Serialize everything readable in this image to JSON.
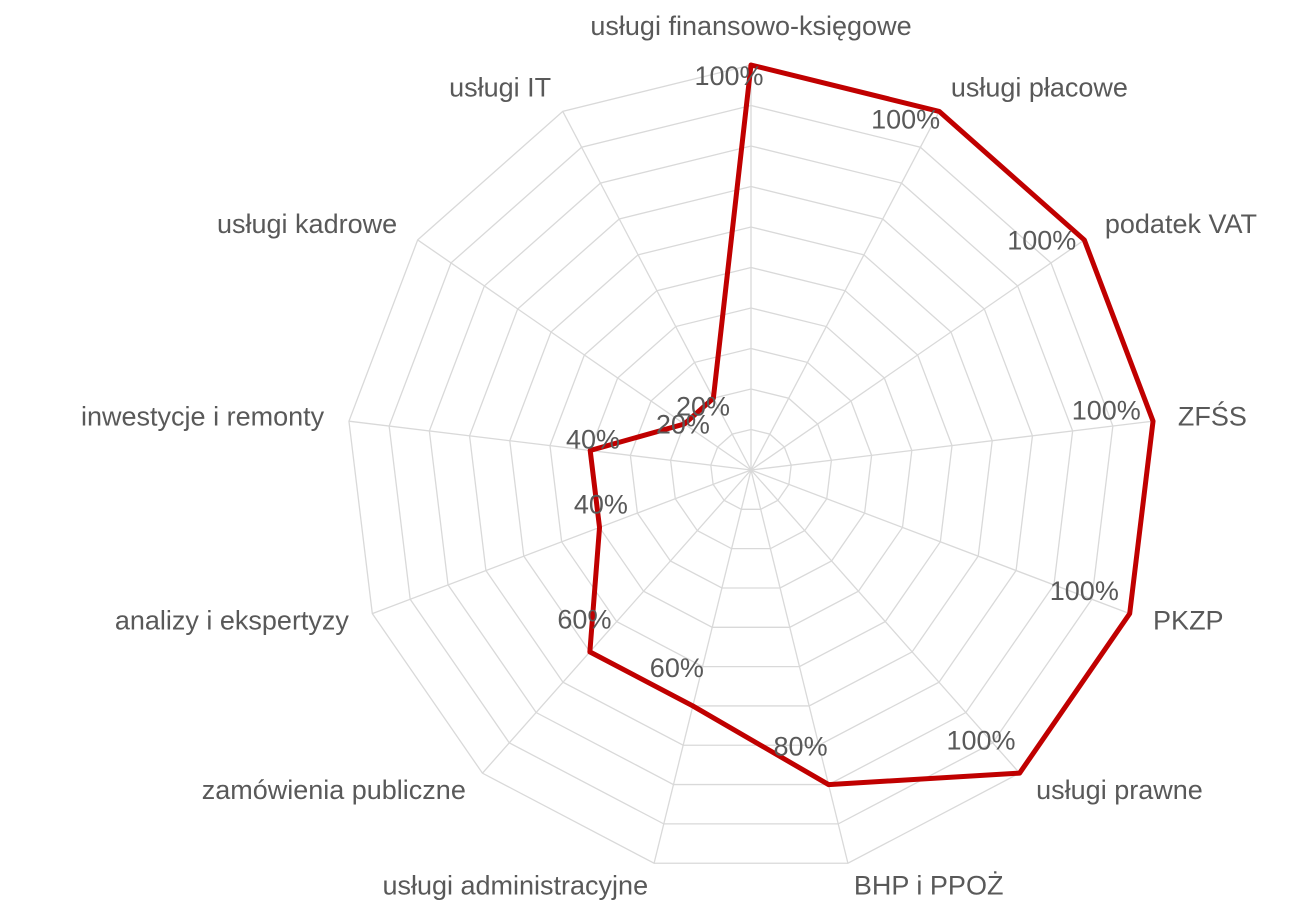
{
  "chart_data": {
    "type": "radar",
    "categories": [
      "usługi finansowo-księgowe",
      "usługi płacowe",
      "podatek VAT",
      "ZFŚS",
      "PKZP",
      "usługi prawne",
      "BHP i PPOŻ",
      "usługi administracyjne",
      "zamówienia publiczne",
      "analizy i ekspertyzy",
      "inwestycje i remonty",
      "usługi kadrowe",
      "usługi IT"
    ],
    "series": [
      {
        "color": "#c00000",
        "values": [
          100,
          100,
          100,
          100,
          100,
          100,
          80,
          60,
          60,
          40,
          40,
          20,
          20
        ],
        "value_labels": [
          "100%",
          "100%",
          "100%",
          "100%",
          "100%",
          "100%",
          "80%",
          "60%",
          "60%",
          "40%",
          "40%",
          "20%",
          "20%"
        ]
      }
    ],
    "rlim": [
      0,
      100
    ],
    "rticks": [
      0,
      10,
      20,
      30,
      40,
      50,
      60,
      70,
      80,
      90,
      100
    ],
    "grid": true
  }
}
